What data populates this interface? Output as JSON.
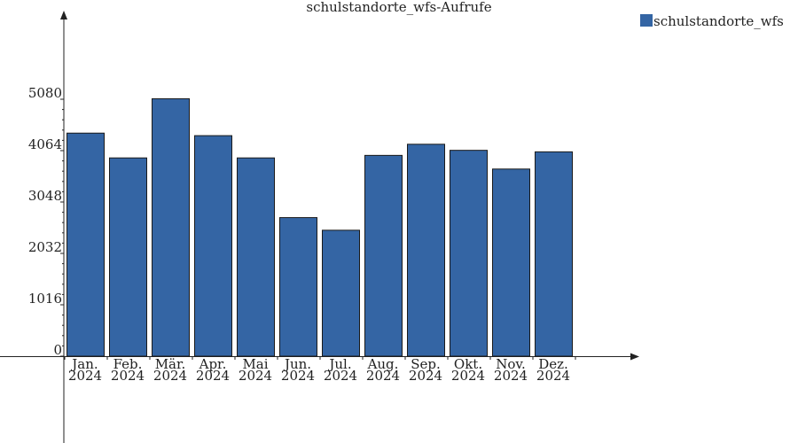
{
  "chart_data": {
    "type": "bar",
    "title": "schulstandorte_wfs-Aufrufe",
    "categories": [
      [
        "Jan.",
        "2024"
      ],
      [
        "Feb.",
        "2024"
      ],
      [
        "Mär.",
        "2024"
      ],
      [
        "Apr.",
        "2024"
      ],
      [
        "Mai",
        "2024"
      ],
      [
        "Jun.",
        "2024"
      ],
      [
        "Jul.",
        "2024"
      ],
      [
        "Aug.",
        "2024"
      ],
      [
        "Sep.",
        "2024"
      ],
      [
        "Okt.",
        "2024"
      ],
      [
        "Nov.",
        "2024"
      ],
      [
        "Dez.",
        "2024"
      ]
    ],
    "series": [
      {
        "name": "schulstandorte_wfs",
        "color": "#3465a4",
        "values": [
          4410,
          3920,
          5090,
          4360,
          3920,
          2740,
          2490,
          3970,
          4190,
          4070,
          3700,
          4040
        ]
      }
    ],
    "y_ticks": [
      0,
      1016,
      2032,
      3048,
      4064,
      5080
    ],
    "ylim": [
      0,
      6760
    ],
    "xlabel": "",
    "ylabel": "",
    "legend": "top-right",
    "grid": false
  }
}
